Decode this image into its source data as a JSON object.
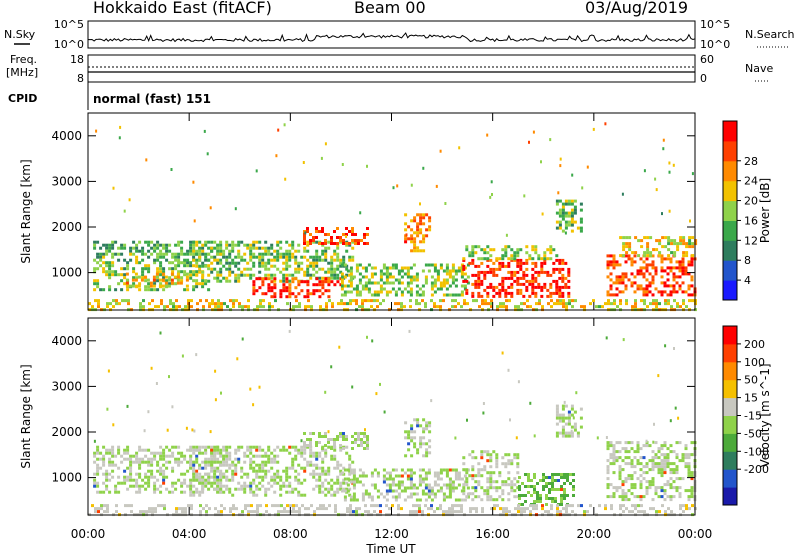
{
  "header": {
    "station": "Hokkaido East (fitACF)",
    "beam": "Beam 00",
    "date": "03/Aug/2019"
  },
  "cpid": {
    "label": "CPID",
    "value": "normal (fast) 151"
  },
  "noise_panel": {
    "left_label": "N.Sky",
    "right_label": "N.Search",
    "left_ticks": [
      "10^5",
      "10^0"
    ],
    "right_ticks": [
      "10^5",
      "10^0"
    ]
  },
  "freq_panel": {
    "left_label_1": "Freq.",
    "left_label_2": "[MHz]",
    "right_label": "Nave",
    "left_ticks": [
      "18",
      "8"
    ],
    "right_ticks": [
      "60",
      "0"
    ]
  },
  "x_axis": {
    "label": "Time UT",
    "ticks": [
      "00:00",
      "04:00",
      "08:00",
      "12:00",
      "16:00",
      "20:00",
      "00:00"
    ],
    "range_hours": [
      0,
      24
    ]
  },
  "chart_data": [
    {
      "type": "heatmap",
      "parameter": "power",
      "ylabel": "Slant Range [km]",
      "ylim": [
        180,
        4500
      ],
      "yticks": [
        1000,
        2000,
        3000,
        4000
      ],
      "colorbar": {
        "label": "Power [dB]",
        "ticks": [
          "4",
          "8",
          "12",
          "16",
          "20",
          "24",
          "28"
        ],
        "colors": [
          "#1a1aff",
          "#2255cc",
          "#2e7d5e",
          "#3aa84a",
          "#8fd24a",
          "#f2c200",
          "#ff8a00",
          "#ff4000",
          "#ff0000"
        ],
        "range": [
          0,
          30
        ]
      },
      "regions": [
        {
          "t0": 0.2,
          "t1": 4.8,
          "r0": 650,
          "r1": 1250,
          "value": 14
        },
        {
          "t0": 0.2,
          "t1": 5.5,
          "r0": 1250,
          "r1": 1700,
          "value": 12
        },
        {
          "t0": 1.5,
          "t1": 4.0,
          "r0": 700,
          "r1": 1000,
          "value": 19
        },
        {
          "t0": 4.0,
          "t1": 10.5,
          "r0": 800,
          "r1": 1700,
          "value": 14
        },
        {
          "t0": 6.5,
          "t1": 10.0,
          "r0": 500,
          "r1": 900,
          "value": 27
        },
        {
          "t0": 8.5,
          "t1": 11.0,
          "r0": 1650,
          "r1": 2000,
          "value": 25
        },
        {
          "t0": 10.0,
          "t1": 15.0,
          "r0": 500,
          "r1": 1200,
          "value": 15
        },
        {
          "t0": 12.5,
          "t1": 13.5,
          "r0": 1500,
          "r1": 2300,
          "value": 22
        },
        {
          "t0": 14.8,
          "t1": 19.0,
          "r0": 500,
          "r1": 1300,
          "value": 27
        },
        {
          "t0": 14.8,
          "t1": 18.5,
          "r0": 1300,
          "r1": 1600,
          "value": 15
        },
        {
          "t0": 18.5,
          "t1": 19.5,
          "r0": 1900,
          "r1": 2600,
          "value": 14
        },
        {
          "t0": 20.5,
          "t1": 24.0,
          "r0": 500,
          "r1": 1400,
          "value": 25
        },
        {
          "t0": 21.0,
          "t1": 24.0,
          "r0": 1400,
          "r1": 1800,
          "value": 18
        },
        {
          "t0": 0.0,
          "t1": 24.0,
          "r0": 180,
          "r1": 420,
          "value": 18
        }
      ]
    },
    {
      "type": "heatmap",
      "parameter": "velocity",
      "ylabel": "Slant Range [km]",
      "ylim": [
        180,
        4500
      ],
      "yticks": [
        1000,
        2000,
        3000,
        4000
      ],
      "colorbar": {
        "label": "Velocity [m s^-1]",
        "ticks": [
          "200",
          "100",
          "50",
          "15",
          "-15",
          "-50",
          "-100",
          "-200"
        ],
        "colors": [
          "#1a1aaa",
          "#2255cc",
          "#2e7d5e",
          "#4caa3a",
          "#8fd24a",
          "#c8c8c0",
          "#f5c000",
          "#ff8a00",
          "#ff4000",
          "#ff0000"
        ],
        "range": [
          -250,
          250
        ]
      },
      "regions": [
        {
          "t0": 0.2,
          "t1": 5.5,
          "r0": 650,
          "r1": 1700,
          "value": 0
        },
        {
          "t0": 4.0,
          "t1": 10.5,
          "r0": 600,
          "r1": 1700,
          "value": 0
        },
        {
          "t0": 8.5,
          "t1": 11.0,
          "r0": 1650,
          "r1": 2000,
          "value": 0
        },
        {
          "t0": 10.0,
          "t1": 15.0,
          "r0": 500,
          "r1": 1200,
          "value": 0
        },
        {
          "t0": 12.5,
          "t1": 13.5,
          "r0": 1500,
          "r1": 2300,
          "value": 0
        },
        {
          "t0": 14.8,
          "t1": 17.0,
          "r0": 500,
          "r1": 1600,
          "value": 0
        },
        {
          "t0": 17.0,
          "t1": 19.2,
          "r0": 400,
          "r1": 1100,
          "value": -60
        },
        {
          "t0": 18.5,
          "t1": 19.5,
          "r0": 1900,
          "r1": 2600,
          "value": 0
        },
        {
          "t0": 20.5,
          "t1": 24.0,
          "r0": 500,
          "r1": 1800,
          "value": 0
        },
        {
          "t0": 0.0,
          "t1": 24.0,
          "r0": 180,
          "r1": 420,
          "value": 25
        }
      ]
    }
  ]
}
